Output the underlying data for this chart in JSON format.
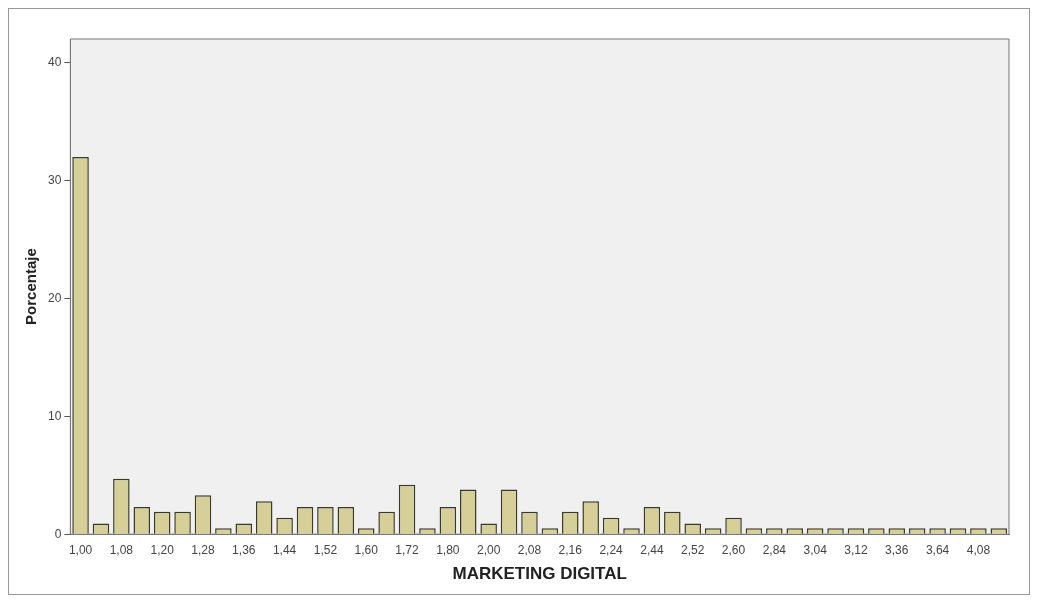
{
  "chart_data": {
    "type": "bar",
    "xlabel": "MARKETING DIGITAL",
    "ylabel": "Porcentaje",
    "categories": [
      "1,00",
      null,
      "1,08",
      null,
      "1,20",
      null,
      "1,28",
      null,
      "1,36",
      null,
      "1,44",
      null,
      "1,52",
      null,
      "1,60",
      null,
      "1,72",
      null,
      "1,80",
      null,
      "2,00",
      null,
      "2,08",
      null,
      "2,16",
      null,
      "2,24",
      null,
      "2,44",
      null,
      "2,52",
      null,
      "2,60",
      null,
      "2,84",
      null,
      "3,04",
      null,
      "3,12",
      null,
      "3,36",
      null,
      "3,64",
      null,
      "4,08",
      null
    ],
    "values": [
      32,
      0.9,
      4.7,
      2.3,
      1.9,
      1.9,
      3.3,
      0.5,
      0.9,
      2.8,
      1.4,
      2.3,
      2.3,
      2.3,
      0.5,
      1.9,
      4.2,
      0.5,
      2.3,
      3.8,
      0.9,
      3.8,
      1.9,
      0.5,
      1.9,
      2.8,
      1.4,
      0.5,
      2.3,
      1.9,
      0.9,
      0.5,
      1.4,
      0.5,
      0.5,
      0.5,
      0.5,
      0.5,
      0.5,
      0.5,
      0.5,
      0.5,
      0.5,
      0.5,
      0.5,
      0.5
    ],
    "color": "#d6cf98",
    "ylim": [
      0,
      42
    ],
    "yticks": [
      0,
      10,
      20,
      30,
      40
    ],
    "grid": false,
    "legend": false
  }
}
